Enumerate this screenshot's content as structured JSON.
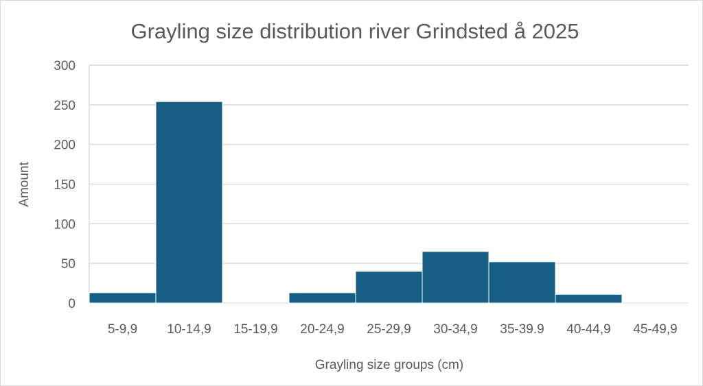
{
  "chart_data": {
    "type": "bar",
    "title": "Grayling size distribution river Grindsted å 2025",
    "xlabel": "Grayling size groups (cm)",
    "ylabel": "Amount",
    "categories": [
      "5-9,9",
      "10-14,9",
      "15-19,9",
      "20-24,9",
      "25-29,9",
      "30-34,9",
      "35-39.9",
      "40-44,9",
      "45-49,9"
    ],
    "values": [
      13,
      254,
      1,
      13,
      40,
      65,
      52,
      11,
      1
    ],
    "ylim": [
      0,
      300
    ],
    "yticks": [
      0,
      50,
      100,
      150,
      200,
      250,
      300
    ],
    "grid": true,
    "legend": "none",
    "bar_color": "#165e83"
  }
}
